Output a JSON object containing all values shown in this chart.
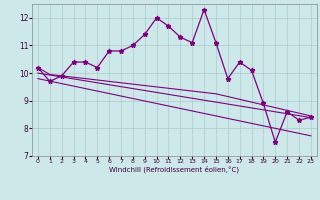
{
  "xlabel": "Windchill (Refroidissement éolien,°C)",
  "ylabel": "",
  "background_color": "#cce8e8",
  "line_color": "#800080",
  "grid_color": "#aacccc",
  "x_main": [
    0,
    1,
    2,
    3,
    4,
    5,
    6,
    7,
    8,
    9,
    10,
    11,
    12,
    13,
    14,
    15,
    16,
    17,
    18,
    19,
    20,
    21,
    22,
    23
  ],
  "y_main": [
    10.2,
    9.7,
    9.9,
    10.4,
    10.4,
    10.2,
    10.8,
    10.8,
    11.0,
    11.4,
    12.0,
    11.7,
    11.3,
    11.1,
    12.3,
    11.1,
    9.8,
    10.4,
    10.1,
    8.9,
    7.5,
    8.6,
    8.3,
    8.4
  ],
  "y_trend1": [
    10.2,
    9.95,
    9.9,
    9.85,
    9.8,
    9.75,
    9.7,
    9.65,
    9.6,
    9.55,
    9.5,
    9.45,
    9.4,
    9.35,
    9.3,
    9.25,
    9.15,
    9.05,
    8.95,
    8.85,
    8.75,
    8.65,
    8.55,
    8.45
  ],
  "y_trend2": [
    10.0,
    9.93,
    9.86,
    9.79,
    9.72,
    9.65,
    9.58,
    9.51,
    9.44,
    9.37,
    9.3,
    9.23,
    9.16,
    9.09,
    9.02,
    8.95,
    8.88,
    8.81,
    8.74,
    8.67,
    8.6,
    8.53,
    8.46,
    8.39
  ],
  "y_trend3": [
    9.8,
    9.71,
    9.62,
    9.53,
    9.44,
    9.35,
    9.26,
    9.17,
    9.08,
    8.99,
    8.9,
    8.81,
    8.72,
    8.63,
    8.54,
    8.45,
    8.36,
    8.27,
    8.18,
    8.09,
    8.0,
    7.91,
    7.82,
    7.73
  ],
  "ylim": [
    7,
    12.5
  ],
  "xlim": [
    -0.5,
    23.5
  ],
  "yticks": [
    7,
    8,
    9,
    10,
    11,
    12
  ],
  "xticks": [
    0,
    1,
    2,
    3,
    4,
    5,
    6,
    7,
    8,
    9,
    10,
    11,
    12,
    13,
    14,
    15,
    16,
    17,
    18,
    19,
    20,
    21,
    22,
    23
  ]
}
